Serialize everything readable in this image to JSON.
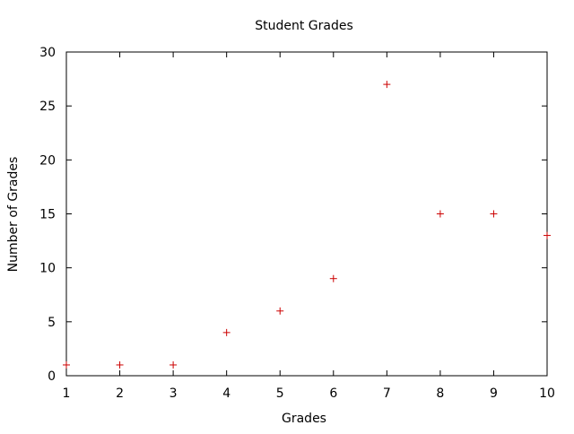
{
  "chart_data": {
    "type": "scatter",
    "title": "Student Grades",
    "xlabel": "Grades",
    "ylabel": "Number of Grades",
    "xlim": [
      1,
      10
    ],
    "ylim": [
      0,
      30
    ],
    "x_ticks": [
      1,
      2,
      3,
      4,
      5,
      6,
      7,
      8,
      9,
      10
    ],
    "y_ticks": [
      0,
      5,
      10,
      15,
      20,
      25,
      30
    ],
    "grid": false,
    "marker": "plus",
    "point_color": "#cc0000",
    "series": [
      {
        "x": [
          1,
          2,
          3,
          4,
          5,
          6,
          7,
          8,
          9,
          10
        ],
        "y": [
          1,
          1,
          1,
          4,
          6,
          9,
          27,
          15,
          15,
          13
        ]
      }
    ]
  }
}
